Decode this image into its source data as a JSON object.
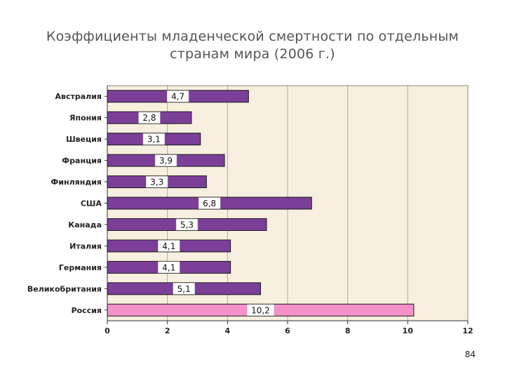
{
  "slide": {
    "title_line1": "Коэффициенты младенческой смертности по отдельным",
    "title_line2": "странам мира (2006 г.)",
    "page_number": "84"
  },
  "chart_data": {
    "type": "bar",
    "orientation": "horizontal",
    "title": "Коэффициенты младенческой смертности по отдельным странам мира (2006 г.)",
    "categories": [
      "Австралия",
      "Япония",
      "Швеция",
      "Франция",
      "Финляндия",
      "США",
      "Канада",
      "Италия",
      "Германия",
      "Великобритания",
      "Россия"
    ],
    "values": [
      4.7,
      2.8,
      3.1,
      3.9,
      3.3,
      6.8,
      5.3,
      4.1,
      4.1,
      5.1,
      10.2
    ],
    "value_labels": [
      "4,7",
      "2,8",
      "3,1",
      "3,9",
      "3,3",
      "6,8",
      "5,3",
      "4,1",
      "4,1",
      "5,1",
      "10,2"
    ],
    "highlight_category": "Россия",
    "xlim": [
      0,
      12
    ],
    "xticks": [
      0,
      2,
      4,
      6,
      8,
      10,
      12
    ],
    "grid": "vertical",
    "xlabel": "",
    "ylabel": "",
    "colors": {
      "bar": "#7b3f98",
      "bar_highlight": "#f391c8",
      "bar_edge": "#1a1a1a",
      "plot_background": "#f7efe0",
      "gridline": "#b0a89a",
      "label_box": "#ffffff"
    }
  }
}
